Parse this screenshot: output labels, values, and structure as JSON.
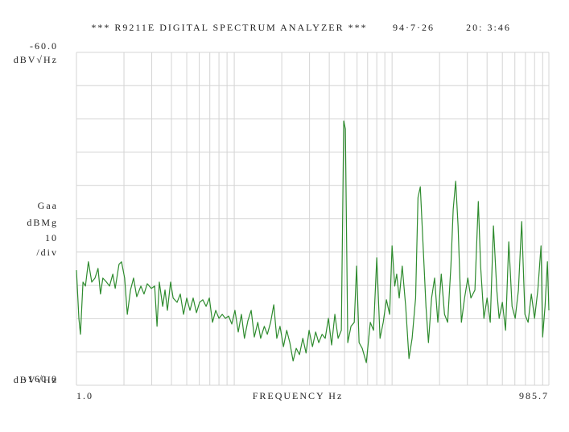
{
  "chart_data": {
    "type": "line",
    "title": "*** R9211E DIGITAL SPECTRUM ANALYZER ***",
    "date": "94·7·26",
    "time": "20: 3:46",
    "y_unit": "dBV√Hz",
    "scale_label": [
      "Gaa",
      "dBMg",
      "10",
      "/div"
    ],
    "xlabel": "FREQUENCY  Hz",
    "xscale": "log",
    "grid": true,
    "color": "#2e8b2e",
    "xlim": [
      1,
      985.7
    ],
    "xticks": [
      {
        "value": 1,
        "label": "1.0"
      },
      2,
      3,
      4,
      5,
      6,
      7,
      8,
      9,
      10,
      20,
      30,
      40,
      50,
      60,
      70,
      80,
      90,
      100,
      200,
      300,
      400,
      500,
      600,
      700,
      800,
      900,
      {
        "value": 985.7,
        "label": "985.7"
      }
    ],
    "ylim": [
      -160,
      -60
    ],
    "yticks": [
      {
        "value": -60,
        "label": "-60.0"
      },
      -70,
      -80,
      -90,
      -100,
      -110,
      -120,
      -130,
      -140,
      -150,
      {
        "value": -160,
        "label": "-160.0"
      }
    ],
    "x": [
      1.0,
      1.036,
      1.06,
      1.1,
      1.14,
      1.19,
      1.25,
      1.31,
      1.37,
      1.42,
      1.47,
      1.55,
      1.62,
      1.7,
      1.76,
      1.86,
      1.93,
      2.02,
      2.1,
      2.2,
      2.3,
      2.41,
      2.56,
      2.68,
      2.81,
      2.98,
      3.13,
      3.24,
      3.35,
      3.52,
      3.64,
      3.77,
      3.95,
      4.1,
      4.34,
      4.55,
      4.77,
      5.0,
      5.24,
      5.49,
      5.76,
      6.03,
      6.32,
      6.63,
      6.95,
      7.28,
      7.63,
      8.0,
      8.39,
      8.79,
      9.21,
      9.65,
      10.1,
      10.6,
      11.1,
      11.6,
      12.2,
      12.8,
      13.4,
      14.1,
      14.7,
      15.5,
      16.2,
      17.0,
      17.8,
      18.6,
      19.5,
      20.5,
      21.5,
      22.5,
      23.6,
      24.7,
      25.9,
      27.2,
      28.5,
      29.8,
      31.3,
      32.8,
      34.3,
      36.0,
      37.7,
      39.5,
      41.4,
      43.4,
      45.5,
      47.7,
      49.4,
      50.6,
      52.4,
      54.9,
      57.6,
      59.6,
      61.8,
      64.7,
      68.7,
      72.8,
      76.3,
      80.0,
      83.9,
      87.9,
      92.1,
      96.5,
      100,
      104,
      107,
      111,
      116,
      122,
      128,
      134,
      141,
      146,
      151,
      156,
      164,
      170,
      178,
      186,
      195,
      205,
      215,
      225,
      236,
      244,
      253,
      262,
      275,
      288,
      302,
      316,
      335,
      352,
      364,
      382,
      400,
      419,
      439,
      461,
      477,
      500,
      524,
      549,
      576,
      603,
      632,
      663,
      695,
      728,
      763,
      800,
      839,
      879,
      900,
      932,
      965,
      985.7
    ],
    "values": [
      -125.4,
      -139.9,
      -144.7,
      -129.0,
      -130.2,
      -122.9,
      -129.0,
      -127.8,
      -124.9,
      -132.6,
      -127.8,
      -129.0,
      -130.2,
      -126.6,
      -130.9,
      -123.7,
      -122.9,
      -127.8,
      -138.7,
      -131.4,
      -127.8,
      -133.4,
      -130.2,
      -132.6,
      -129.5,
      -130.9,
      -130.2,
      -142.3,
      -129.0,
      -136.3,
      -131.4,
      -137.5,
      -129.0,
      -133.8,
      -135.1,
      -132.6,
      -138.7,
      -133.8,
      -137.5,
      -133.8,
      -138.2,
      -135.1,
      -134.3,
      -136.3,
      -133.8,
      -141.1,
      -137.5,
      -139.9,
      -138.7,
      -139.9,
      -139.2,
      -141.6,
      -137.5,
      -144.0,
      -138.7,
      -145.9,
      -140.6,
      -137.5,
      -145.5,
      -141.1,
      -145.9,
      -142.3,
      -144.7,
      -141.1,
      -135.8,
      -145.9,
      -142.3,
      -148.4,
      -143.5,
      -147.2,
      -152.7,
      -148.9,
      -150.8,
      -145.9,
      -150.3,
      -143.5,
      -148.4,
      -144.0,
      -147.2,
      -144.7,
      -145.9,
      -139.9,
      -147.9,
      -138.7,
      -145.9,
      -143.5,
      -80.6,
      -83.0,
      -147.2,
      -142.3,
      -141.1,
      -124.2,
      -147.2,
      -148.9,
      -153.2,
      -141.1,
      -143.5,
      -121.7,
      -145.9,
      -141.1,
      -134.3,
      -138.7,
      -118.1,
      -130.2,
      -126.6,
      -133.8,
      -124.2,
      -136.3,
      -152.0,
      -145.9,
      -133.8,
      -103.6,
      -100.4,
      -114.5,
      -136.3,
      -147.2,
      -133.8,
      -127.8,
      -141.1,
      -126.6,
      -138.7,
      -141.1,
      -124.2,
      -107.2,
      -98.7,
      -112.1,
      -141.1,
      -133.8,
      -127.8,
      -133.8,
      -131.4,
      -104.8,
      -124.2,
      -139.9,
      -133.8,
      -141.1,
      -112.1,
      -131.4,
      -139.9,
      -135.1,
      -143.5,
      -116.9,
      -136.3,
      -139.9,
      -131.4,
      -110.8,
      -138.7,
      -141.1,
      -132.6,
      -139.9,
      -131.4,
      -118.1,
      -145.5,
      -136.3,
      -122.9,
      -137.5
    ]
  }
}
